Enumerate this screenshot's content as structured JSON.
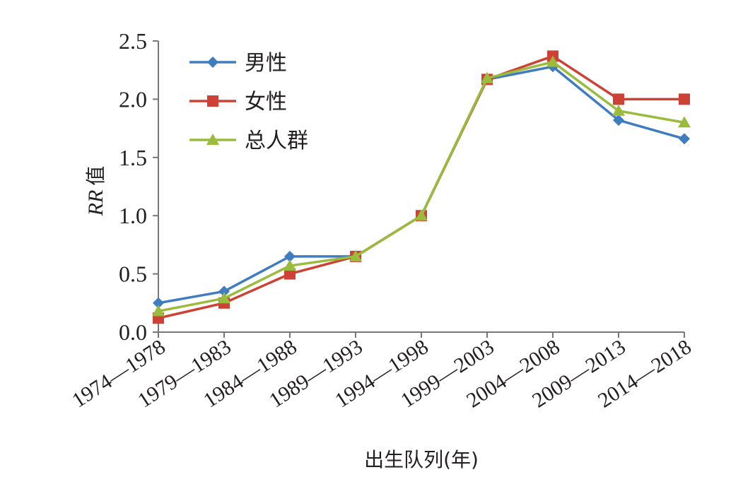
{
  "chart_data": {
    "type": "line",
    "title": "",
    "xlabel": "出生队列(年)",
    "ylabel_italic": "RR",
    "ylabel_suffix": "值",
    "ylim": [
      0,
      2.5
    ],
    "yticks": [
      "0.0",
      "0.5",
      "1.0",
      "1.5",
      "2.0",
      "2.5"
    ],
    "categories": [
      "1974—1978",
      "1979—1983",
      "1984—1988",
      "1989—1993",
      "1994—1998",
      "1999—2003",
      "2004—2008",
      "2009—2013",
      "2014—2018"
    ],
    "legend_position": "top-left",
    "series": [
      {
        "name": "男性",
        "color": "#3f7cc0",
        "marker": "diamond",
        "values": [
          0.25,
          0.35,
          0.65,
          0.65,
          1.0,
          2.17,
          2.28,
          1.82,
          1.66
        ]
      },
      {
        "name": "女性",
        "color": "#cd4235",
        "marker": "square",
        "values": [
          0.12,
          0.25,
          0.5,
          0.65,
          1.0,
          2.17,
          2.37,
          2.0,
          2.0
        ]
      },
      {
        "name": "总人群",
        "color": "#9bbb3c",
        "marker": "triangle",
        "values": [
          0.18,
          0.29,
          0.57,
          0.65,
          1.0,
          2.18,
          2.32,
          1.9,
          1.8
        ]
      }
    ]
  }
}
